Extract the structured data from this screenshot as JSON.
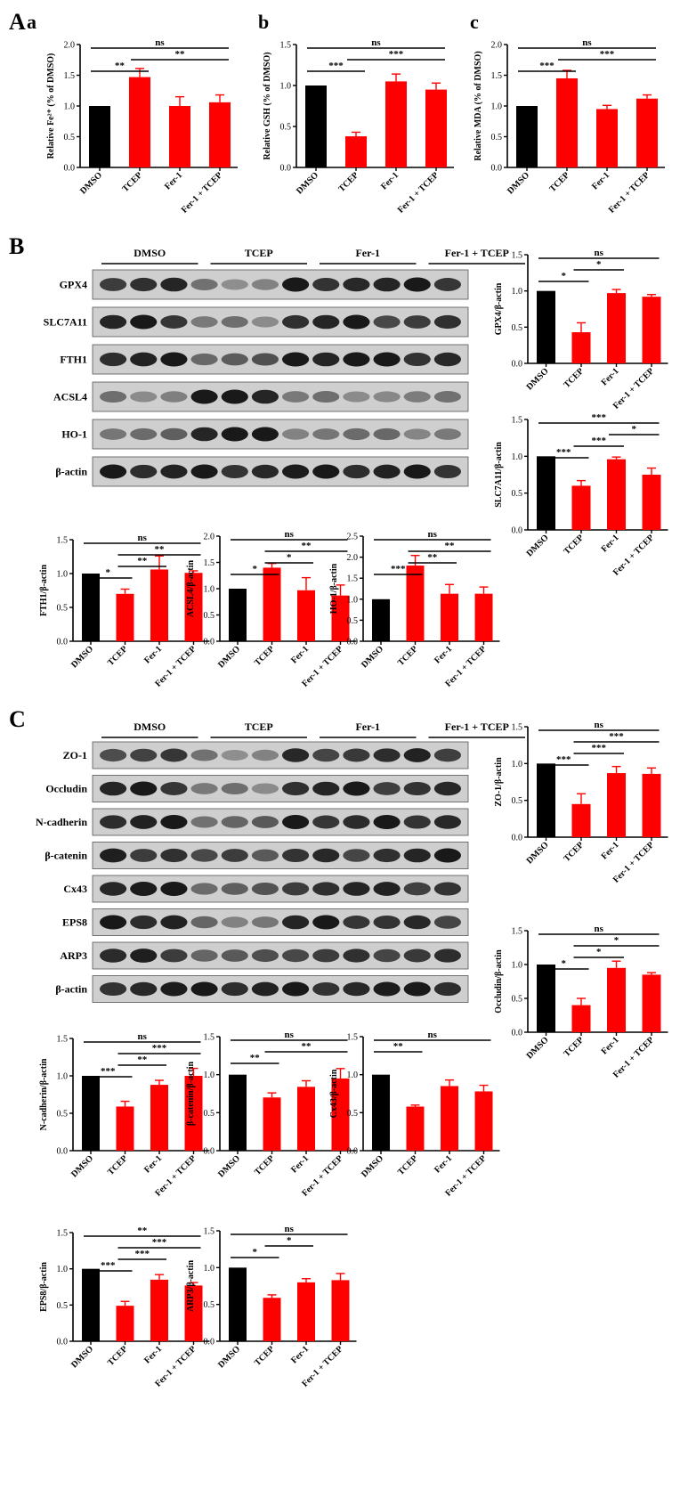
{
  "panels": {
    "A": "A",
    "a": "a",
    "b": "b",
    "c": "c",
    "B": "B",
    "C": "C"
  },
  "colors": {
    "control": "#000000",
    "treatment": "#ff0000"
  },
  "blots": [
    {
      "id": "blotB",
      "groups": [
        "DMSO",
        "TCEP",
        "Fer-1",
        "Fer-1 + TCEP"
      ],
      "proteins": [
        "GPX4",
        "SLC7A11",
        "FTH1",
        "ACSL4",
        "HO-1",
        "β-actin"
      ]
    },
    {
      "id": "blotC",
      "groups": [
        "DMSO",
        "TCEP",
        "Fer-1",
        "Fer-1 + TCEP"
      ],
      "proteins": [
        "ZO-1",
        "Occludin",
        "N-cadherin",
        "β-catenin",
        "Cx43",
        "EPS8",
        "ARP3",
        "β-actin"
      ]
    }
  ],
  "chart_data": [
    {
      "id": "fe",
      "type": "bar",
      "categories": [
        "DMSO",
        "TCEP",
        "Fer-1",
        "Fer-1 + TCEP"
      ],
      "values": [
        1.0,
        1.47,
        1.0,
        1.06
      ],
      "errors": [
        0,
        0.14,
        0.15,
        0.12
      ],
      "ylabel": "Relative Fe²⁺ (% of DMSO)",
      "ylim": [
        0,
        2.0
      ],
      "yticks": [
        "0.0",
        "0.5",
        "1.0",
        "1.5",
        "2.0"
      ],
      "annotations": [
        {
          "from": 0,
          "to": 1,
          "label": "**"
        },
        {
          "from": 1,
          "to": 3,
          "label": "**"
        },
        {
          "from": 0,
          "to": 3,
          "label": "ns"
        }
      ]
    },
    {
      "id": "gsh",
      "type": "bar",
      "categories": [
        "DMSO",
        "TCEP",
        "Fer-1",
        "Fer-1 + TCEP"
      ],
      "values": [
        1.0,
        0.38,
        1.05,
        0.95
      ],
      "errors": [
        0,
        0.05,
        0.09,
        0.08
      ],
      "ylabel": "Relative GSH (% of DMSO)",
      "ylim": [
        0,
        1.5
      ],
      "yticks": [
        "0.0",
        "0.5",
        "1.0",
        "1.5"
      ],
      "annotations": [
        {
          "from": 0,
          "to": 1,
          "label": "***"
        },
        {
          "from": 1,
          "to": 3,
          "label": "***"
        },
        {
          "from": 0,
          "to": 3,
          "label": "ns"
        }
      ]
    },
    {
      "id": "mda",
      "type": "bar",
      "categories": [
        "DMSO",
        "TCEP",
        "Fer-1",
        "Fer-1 + TCEP"
      ],
      "values": [
        1.0,
        1.45,
        0.95,
        1.12
      ],
      "errors": [
        0,
        0.13,
        0.06,
        0.06
      ],
      "ylabel": "Relative MDA (% of DMSO)",
      "ylim": [
        0,
        2.0
      ],
      "yticks": [
        "0.0",
        "0.5",
        "1.0",
        "1.5",
        "2.0"
      ],
      "annotations": [
        {
          "from": 0,
          "to": 1,
          "label": "***"
        },
        {
          "from": 1,
          "to": 3,
          "label": "***"
        },
        {
          "from": 0,
          "to": 3,
          "label": "ns"
        }
      ]
    },
    {
      "id": "gpx4",
      "type": "bar",
      "categories": [
        "DMSO",
        "TCEP",
        "Fer-1",
        "Fer-1 + TCEP"
      ],
      "values": [
        1.0,
        0.43,
        0.97,
        0.92
      ],
      "errors": [
        0,
        0.13,
        0.05,
        0.03
      ],
      "ylabel": "GPX4/β-actin",
      "ylim": [
        0,
        1.5
      ],
      "yticks": [
        "0.0",
        "0.5",
        "1.0",
        "1.5"
      ],
      "annotations": [
        {
          "from": 0,
          "to": 1,
          "label": "*"
        },
        {
          "from": 1,
          "to": 2,
          "label": "*"
        },
        {
          "from": 0,
          "to": 3,
          "label": "ns"
        }
      ]
    },
    {
      "id": "slc7a11",
      "type": "bar",
      "categories": [
        "DMSO",
        "TCEP",
        "Fer-1",
        "Fer-1 + TCEP"
      ],
      "values": [
        1.0,
        0.6,
        0.96,
        0.75
      ],
      "errors": [
        0,
        0.07,
        0.03,
        0.09
      ],
      "ylabel": "SLC7A11/β-actin",
      "ylim": [
        0,
        1.5
      ],
      "yticks": [
        "0.0",
        "0.5",
        "1.0",
        "1.5"
      ],
      "annotations": [
        {
          "from": 0,
          "to": 1,
          "label": "***"
        },
        {
          "from": 1,
          "to": 2,
          "label": "***"
        },
        {
          "from": 2,
          "to": 3,
          "label": "*"
        },
        {
          "from": 0,
          "to": 3,
          "label": "***"
        }
      ]
    },
    {
      "id": "fth1",
      "type": "bar",
      "categories": [
        "DMSO",
        "TCEP",
        "Fer-1",
        "Fer-1 + TCEP"
      ],
      "values": [
        1.0,
        0.7,
        1.06,
        1.01
      ],
      "errors": [
        0,
        0.07,
        0.2,
        0.03
      ],
      "ylabel": "FTH1/β-actin",
      "ylim": [
        0,
        1.5
      ],
      "yticks": [
        "0.0",
        "0.5",
        "1.0",
        "1.5"
      ],
      "annotations": [
        {
          "from": 0,
          "to": 1,
          "label": "*"
        },
        {
          "from": 1,
          "to": 2,
          "label": "**"
        },
        {
          "from": 1,
          "to": 3,
          "label": "**"
        },
        {
          "from": 0,
          "to": 3,
          "label": "ns"
        }
      ]
    },
    {
      "id": "acsl4",
      "type": "bar",
      "categories": [
        "DMSO",
        "TCEP",
        "Fer-1",
        "Fer-1 + TCEP"
      ],
      "values": [
        1.0,
        1.4,
        0.97,
        0.87
      ],
      "errors": [
        0,
        0.08,
        0.24,
        0.2
      ],
      "ylabel": "ACSL4/β-actin",
      "ylim": [
        0,
        2.0
      ],
      "yticks": [
        "0.0",
        "0.5",
        "1.0",
        "1.5",
        "2.0"
      ],
      "annotations": [
        {
          "from": 0,
          "to": 1,
          "label": "*"
        },
        {
          "from": 1,
          "to": 2,
          "label": "*"
        },
        {
          "from": 1,
          "to": 3,
          "label": "**"
        },
        {
          "from": 0,
          "to": 3,
          "label": "ns"
        }
      ]
    },
    {
      "id": "ho1",
      "type": "bar",
      "categories": [
        "DMSO",
        "TCEP",
        "Fer-1",
        "Fer-1 + TCEP"
      ],
      "values": [
        1.0,
        1.8,
        1.13,
        1.13
      ],
      "errors": [
        0,
        0.24,
        0.22,
        0.16
      ],
      "ylabel": "HO-1/β-actin",
      "ylim": [
        0,
        2.5
      ],
      "yticks": [
        "0.0",
        "0.5",
        "1.0",
        "1.5",
        "2.0",
        "2.5"
      ],
      "annotations": [
        {
          "from": 0,
          "to": 1,
          "label": "***"
        },
        {
          "from": 1,
          "to": 2,
          "label": "**"
        },
        {
          "from": 1,
          "to": 3,
          "label": "**"
        },
        {
          "from": 0,
          "to": 3,
          "label": "ns"
        }
      ]
    },
    {
      "id": "zo1",
      "type": "bar",
      "categories": [
        "DMSO",
        "TCEP",
        "Fer-1",
        "Fer-1 + TCEP"
      ],
      "values": [
        1.0,
        0.45,
        0.87,
        0.86
      ],
      "errors": [
        0,
        0.14,
        0.09,
        0.08
      ],
      "ylabel": "ZO-1/β-actin",
      "ylim": [
        0,
        1.5
      ],
      "yticks": [
        "0.0",
        "0.5",
        "1.0",
        "1.5"
      ],
      "annotations": [
        {
          "from": 0,
          "to": 1,
          "label": "***"
        },
        {
          "from": 1,
          "to": 2,
          "label": "***"
        },
        {
          "from": 1,
          "to": 3,
          "label": "***"
        },
        {
          "from": 0,
          "to": 3,
          "label": "ns"
        }
      ]
    },
    {
      "id": "occludin",
      "type": "bar",
      "categories": [
        "DMSO",
        "TCEP",
        "Fer-1",
        "Fer-1 + TCEP"
      ],
      "values": [
        1.0,
        0.4,
        0.95,
        0.85
      ],
      "errors": [
        0,
        0.1,
        0.1,
        0.03
      ],
      "ylabel": "Occludin/β-actin",
      "ylim": [
        0,
        1.5
      ],
      "yticks": [
        "0.0",
        "0.5",
        "1.0",
        "1.5"
      ],
      "annotations": [
        {
          "from": 0,
          "to": 1,
          "label": "*"
        },
        {
          "from": 1,
          "to": 2,
          "label": "*"
        },
        {
          "from": 1,
          "to": 3,
          "label": "*"
        },
        {
          "from": 0,
          "to": 3,
          "label": "ns"
        }
      ]
    },
    {
      "id": "ncad",
      "type": "bar",
      "categories": [
        "DMSO",
        "TCEP",
        "Fer-1",
        "Fer-1 + TCEP"
      ],
      "values": [
        1.0,
        0.59,
        0.88,
        1.0
      ],
      "errors": [
        0,
        0.07,
        0.06,
        0.1
      ],
      "ylabel": "N-cadherin/β-actin",
      "ylim": [
        0,
        1.5
      ],
      "yticks": [
        "0.0",
        "0.5",
        "1.0",
        "1.5"
      ],
      "annotations": [
        {
          "from": 0,
          "to": 1,
          "label": "***"
        },
        {
          "from": 1,
          "to": 2,
          "label": "**"
        },
        {
          "from": 1,
          "to": 3,
          "label": "***"
        },
        {
          "from": 0,
          "to": 3,
          "label": "ns"
        }
      ]
    },
    {
      "id": "bcat",
      "type": "bar",
      "categories": [
        "DMSO",
        "TCEP",
        "Fer-1",
        "Fer-1 + TCEP"
      ],
      "values": [
        1.0,
        0.7,
        0.84,
        0.95
      ],
      "errors": [
        0,
        0.06,
        0.08,
        0.13
      ],
      "ylabel": "β-catenin/β-actin",
      "ylim": [
        0,
        1.5
      ],
      "yticks": [
        "0.0",
        "0.5",
        "1.0",
        "1.5"
      ],
      "annotations": [
        {
          "from": 0,
          "to": 1,
          "label": "**"
        },
        {
          "from": 1,
          "to": 3,
          "label": "**"
        },
        {
          "from": 0,
          "to": 3,
          "label": "ns"
        }
      ]
    },
    {
      "id": "cx43",
      "type": "bar",
      "categories": [
        "DMSO",
        "TCEP",
        "Fer-1",
        "Fer-1 + TCEP"
      ],
      "values": [
        1.0,
        0.58,
        0.85,
        0.78
      ],
      "errors": [
        0,
        0.02,
        0.08,
        0.08
      ],
      "ylabel": "Cx43/β-actin",
      "ylim": [
        0,
        1.5
      ],
      "yticks": [
        "0.0",
        "0.5",
        "1.0",
        "1.5"
      ],
      "annotations": [
        {
          "from": 0,
          "to": 1,
          "label": "**"
        },
        {
          "from": 0,
          "to": 3,
          "label": "ns"
        }
      ]
    },
    {
      "id": "eps8",
      "type": "bar",
      "categories": [
        "DMSO",
        "TCEP",
        "Fer-1",
        "Fer-1 + TCEP"
      ],
      "values": [
        1.0,
        0.49,
        0.85,
        0.77
      ],
      "errors": [
        0,
        0.06,
        0.07,
        0.04
      ],
      "ylabel": "EPS8/β-actin",
      "ylim": [
        0,
        1.5
      ],
      "yticks": [
        "0.0",
        "0.5",
        "1.0",
        "1.5"
      ],
      "annotations": [
        {
          "from": 0,
          "to": 1,
          "label": "***"
        },
        {
          "from": 1,
          "to": 2,
          "label": "***"
        },
        {
          "from": 1,
          "to": 3,
          "label": "***"
        },
        {
          "from": 0,
          "to": 3,
          "label": "**"
        }
      ]
    },
    {
      "id": "arp3",
      "type": "bar",
      "categories": [
        "DMSO",
        "TCEP",
        "Fer-1",
        "Fer-1 + TCEP"
      ],
      "values": [
        1.0,
        0.59,
        0.8,
        0.83
      ],
      "errors": [
        0,
        0.04,
        0.05,
        0.09
      ],
      "ylabel": "ARP3/β-actin",
      "ylim": [
        0,
        1.5
      ],
      "yticks": [
        "0.0",
        "0.5",
        "1.0",
        "1.5"
      ],
      "annotations": [
        {
          "from": 0,
          "to": 1,
          "label": "*"
        },
        {
          "from": 1,
          "to": 2,
          "label": "*"
        },
        {
          "from": 0,
          "to": 3,
          "label": "ns"
        }
      ]
    }
  ]
}
